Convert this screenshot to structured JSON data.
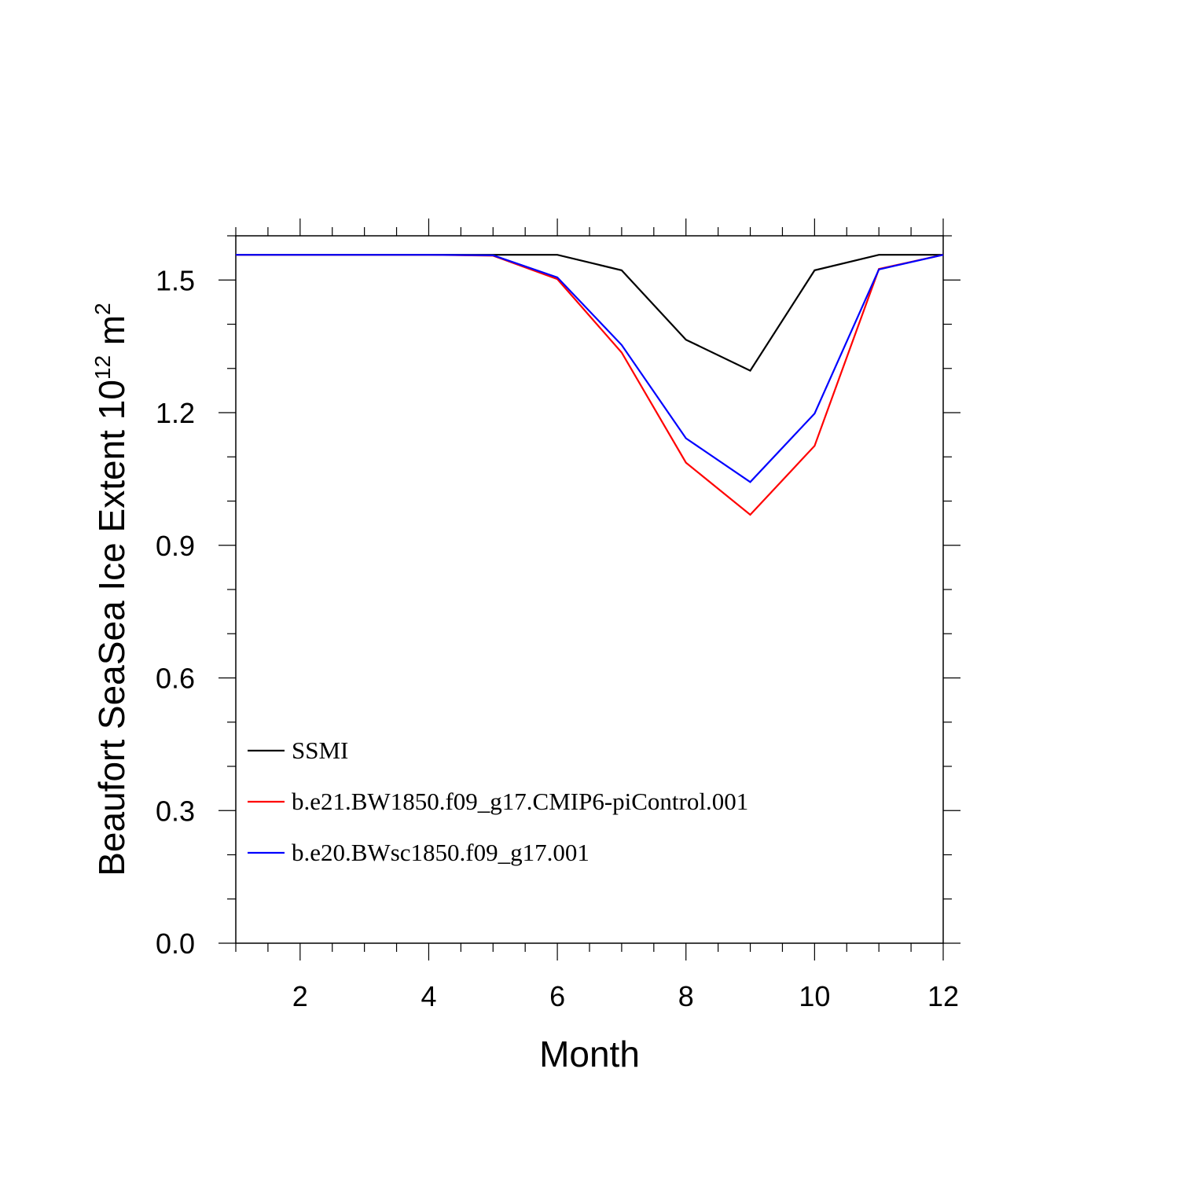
{
  "chart_data": {
    "type": "line",
    "xlabel": "Month",
    "ylabel": "Beaufort SeaSea Ice Extent 10",
    "ylabel_exp": "12",
    "ylabel_unit": " m",
    "ylabel_unit_exp": "2",
    "xlim": [
      1,
      12
    ],
    "ylim": [
      0,
      1.6
    ],
    "xticks": [
      2,
      4,
      6,
      8,
      10,
      12
    ],
    "yticks": [
      0.0,
      0.3,
      0.6,
      0.9,
      1.2,
      1.5
    ],
    "xtick_labels": [
      "2",
      "4",
      "6",
      "8",
      "10",
      "12"
    ],
    "ytick_labels": [
      "0.0",
      "0.3",
      "0.6",
      "0.9",
      "1.2",
      "1.5"
    ],
    "grid": false,
    "legend_position": "bottom-left",
    "x": [
      1,
      2,
      3,
      4,
      5,
      6,
      7,
      8,
      9,
      10,
      11,
      12
    ],
    "series": [
      {
        "name": "SSMI",
        "color": "#000000",
        "values": [
          1.557,
          1.557,
          1.557,
          1.557,
          1.557,
          1.557,
          1.522,
          1.365,
          1.295,
          1.522,
          1.557,
          1.557
        ]
      },
      {
        "name": "b.e21.BW1850.f09_g17.CMIP6-piControl.001",
        "color": "#ff0000",
        "values": [
          1.557,
          1.557,
          1.557,
          1.557,
          1.555,
          1.502,
          1.336,
          1.087,
          0.969,
          1.125,
          1.525,
          1.557
        ]
      },
      {
        "name": "b.e20.BWsc1850.f09_g17.001",
        "color": "#0000ff",
        "values": [
          1.557,
          1.557,
          1.557,
          1.557,
          1.556,
          1.506,
          1.353,
          1.142,
          1.043,
          1.198,
          1.524,
          1.557
        ]
      }
    ]
  }
}
